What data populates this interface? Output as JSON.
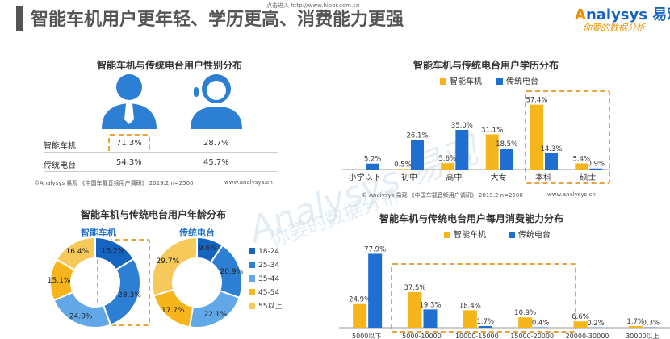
{
  "header": {
    "title": "智能车机用户更年轻、学历更高、消费能力更强",
    "url_text": "点击进入 http://www.hibor.com.cn",
    "logo_text": "nalysys 易观",
    "logo_sub": "你要的数据分析"
  },
  "watermark": {
    "text": "Analysys 易观",
    "sub": "你要的数据分析"
  },
  "colors": {
    "smart": "#f5b51b",
    "radio": "#1e6fd0",
    "icon": "#2d7fd3",
    "dash": "#e8a33d"
  },
  "gender": {
    "title": "智能车机与传统电台用户性别分布",
    "icons": [
      "male-user-icon",
      "female-user-icon"
    ],
    "rows": [
      {
        "label": "智能车机",
        "male": "71.3%",
        "female": "28.7%"
      },
      {
        "label": "传统电台",
        "male": "54.3%",
        "female": "45.7%"
      }
    ],
    "source": "©Analysys 易观 《中国车载音频用户调研》 2019.2 n=2500",
    "site": "www.analysys.cn"
  },
  "age": {
    "title": "智能车机与传统电台用户年龄分布",
    "labels": {
      "smart": "智能车机",
      "radio": "传统电台"
    }
  },
  "edu_meta": {
    "title": "智能车机与传统电台用户学历分布",
    "source": "© Analysys 易观 《中国车载音频用户调研》 2019.2 n=2500",
    "site": "www.analysys.cn"
  },
  "spend_meta": {
    "title": "智能车机与传统电台用户每月消费能力分布"
  },
  "chart_data": [
    {
      "type": "bar",
      "title": "智能车机与传统电台用户学历分布",
      "categories": [
        "小学以下",
        "初中",
        "高中",
        "大专",
        "本科",
        "硕士"
      ],
      "series": [
        {
          "name": "智能车机",
          "values": [
            0.0,
            0.5,
            5.6,
            31.1,
            57.4,
            5.4
          ],
          "labels": [
            "",
            "0.5%",
            "5.6%",
            "31.1%",
            "57.4%",
            "5.4%"
          ]
        },
        {
          "name": "传统电台",
          "values": [
            5.2,
            26.1,
            35.0,
            18.5,
            14.3,
            0.9
          ],
          "labels": [
            "5.2%",
            "26.1%",
            "35.0%",
            "18.5%",
            "14.3%",
            "0.9%"
          ]
        }
      ],
      "ylim": [
        0,
        60
      ],
      "legend": "top-right"
    },
    {
      "type": "pie",
      "title": "智能车机",
      "categories": [
        "18-24",
        "25-34",
        "35-44",
        "45-54",
        "55以上"
      ],
      "values": [
        16.2,
        28.3,
        24.0,
        15.1,
        16.4
      ],
      "labels": [
        "16.2%",
        "28.3%",
        "24.0%",
        "15.1%",
        "16.4%"
      ]
    },
    {
      "type": "pie",
      "title": "传统电台",
      "categories": [
        "18-24",
        "25-34",
        "35-44",
        "45-54",
        "55以上"
      ],
      "values": [
        9.6,
        20.9,
        22.1,
        17.7,
        29.7
      ],
      "labels": [
        "9.6%",
        "20.9%",
        "22.1%",
        "17.7%",
        "29.7%"
      ],
      "legend": "right",
      "colors": [
        "#1565c0",
        "#2d7fd3",
        "#62a8e8",
        "#f5b51b",
        "#f7c95a"
      ]
    },
    {
      "type": "bar",
      "title": "智能车机与传统电台用户每月消费能力分布",
      "categories": [
        "5000以下",
        "5000-10000",
        "10000-15000",
        "15000-20000",
        "20000-30000",
        "30000以上"
      ],
      "series": [
        {
          "name": "智能车机",
          "values": [
            24.9,
            37.5,
            18.4,
            10.9,
            6.6,
            1.7
          ],
          "labels": [
            "24.9%",
            "37.5%",
            "18.4%",
            "10.9%",
            "6.6%",
            "1.7%"
          ]
        },
        {
          "name": "传统电台",
          "values": [
            77.9,
            19.3,
            1.7,
            0.4,
            0.2,
            0.3
          ],
          "labels": [
            "77.9%",
            "19.3%",
            "1.7%",
            "0.4%",
            "0.2%",
            "0.3%"
          ]
        }
      ],
      "ylim": [
        0,
        80
      ],
      "legend": "top"
    }
  ]
}
